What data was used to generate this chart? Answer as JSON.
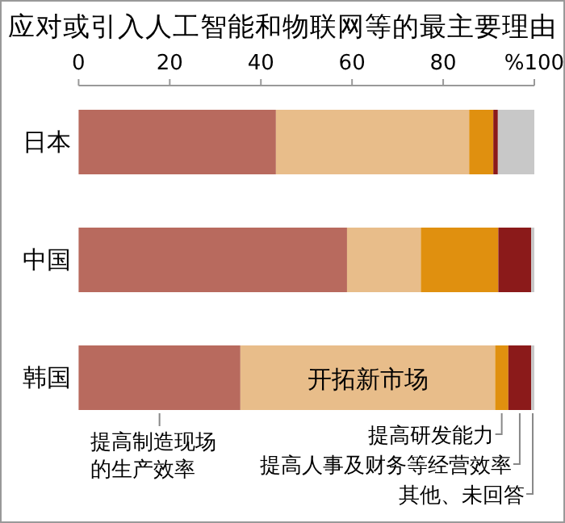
{
  "chart_data": {
    "type": "bar",
    "orientation": "horizontal",
    "stacked": true,
    "title": "应对或引入人工智能和物联网等的最主要理由",
    "categories": [
      "日本",
      "中国",
      "韩国"
    ],
    "xlim": [
      0,
      100
    ],
    "xticks": [
      0,
      20,
      40,
      60,
      80,
      {
        "value": 100,
        "label": "%100"
      }
    ],
    "series": [
      {
        "name": "提高制造现场的生产效率",
        "color": "#b86a5e",
        "values": [
          43.3,
          58.9,
          35.5
        ]
      },
      {
        "name": "开拓新市场",
        "color": "#e8bd8a",
        "values": [
          42.4,
          16.2,
          55.9
        ]
      },
      {
        "name": "提高研发能力",
        "color": "#e0900f",
        "values": [
          5.3,
          17.0,
          2.9
        ]
      },
      {
        "name": "提高人事及财务等经营效率",
        "color": "#8b1a1a",
        "values": [
          1.0,
          7.2,
          5.0
        ]
      },
      {
        "name": "其他、未回答",
        "color": "#c8c8c8",
        "values": [
          8.0,
          0.7,
          0.7
        ]
      }
    ]
  }
}
